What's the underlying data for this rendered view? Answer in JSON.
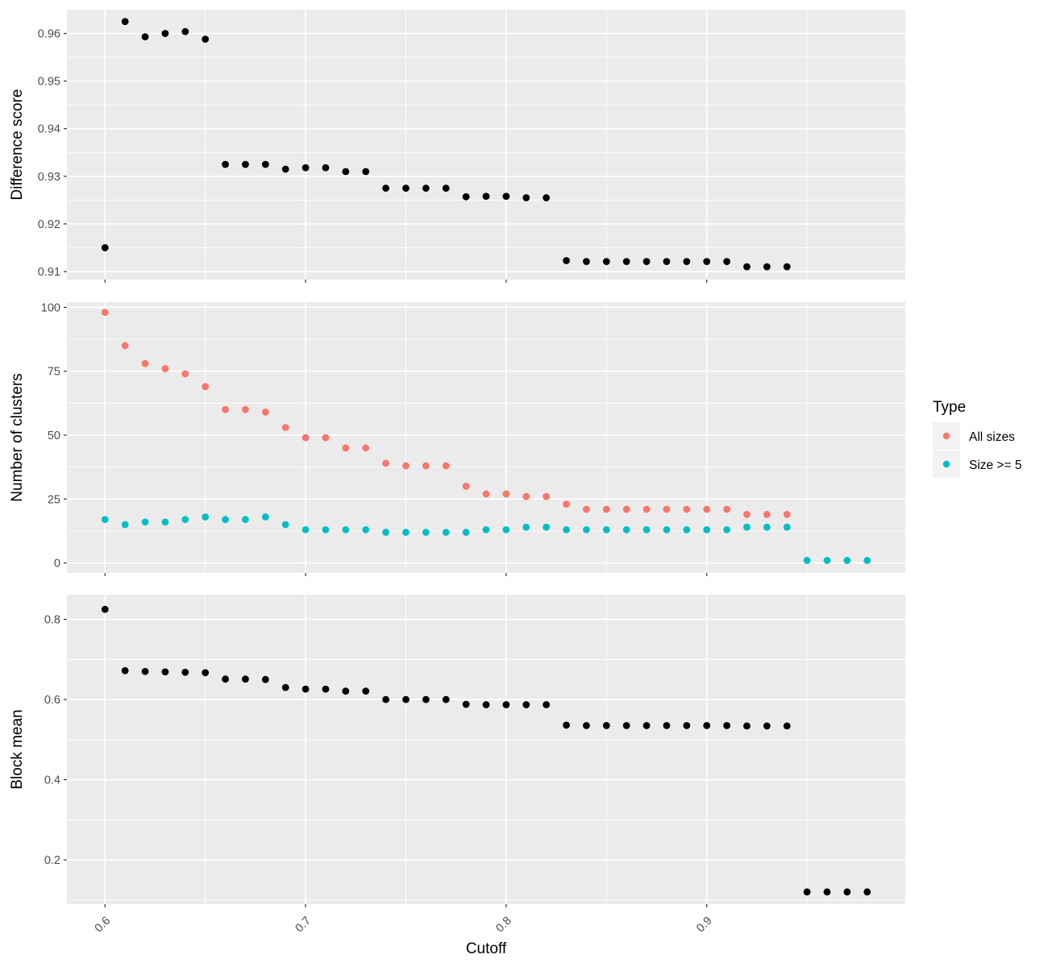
{
  "chart_data": {
    "type": "scatter",
    "x_axis": {
      "label": "Cutoff",
      "range": [
        0.581,
        0.999
      ],
      "ticks": [
        0.6,
        0.7,
        0.8,
        0.9
      ],
      "tick_labels": [
        "0.6",
        "0.7",
        "0.8",
        "0.9"
      ],
      "tick_label_rotation_deg": -45
    },
    "grid": true,
    "panel_background": "#ebebeb",
    "panels": [
      {
        "ylabel": "Difference score",
        "ylim": [
          0.9083,
          0.965
        ],
        "yticks": [
          0.91,
          0.92,
          0.93,
          0.94,
          0.95,
          0.96
        ],
        "ytick_labels": [
          "0.91",
          "0.92",
          "0.93",
          "0.94",
          "0.95",
          "0.96"
        ],
        "series": [
          {
            "color": "#000000",
            "points": [
              [
                0.6,
                0.915
              ],
              [
                0.61,
                0.9625
              ],
              [
                0.62,
                0.9593
              ],
              [
                0.63,
                0.96
              ],
              [
                0.64,
                0.9604
              ],
              [
                0.65,
                0.9588
              ],
              [
                0.66,
                0.9325
              ],
              [
                0.67,
                0.9325
              ],
              [
                0.68,
                0.9325
              ],
              [
                0.69,
                0.9315
              ],
              [
                0.7,
                0.9318
              ],
              [
                0.71,
                0.9318
              ],
              [
                0.72,
                0.931
              ],
              [
                0.73,
                0.931
              ],
              [
                0.74,
                0.9275
              ],
              [
                0.75,
                0.9275
              ],
              [
                0.76,
                0.9275
              ],
              [
                0.77,
                0.9275
              ],
              [
                0.78,
                0.9257
              ],
              [
                0.79,
                0.9258
              ],
              [
                0.8,
                0.9258
              ],
              [
                0.81,
                0.9255
              ],
              [
                0.82,
                0.9255
              ],
              [
                0.83,
                0.9123
              ],
              [
                0.84,
                0.9121
              ],
              [
                0.85,
                0.9121
              ],
              [
                0.86,
                0.9121
              ],
              [
                0.87,
                0.9121
              ],
              [
                0.88,
                0.9121
              ],
              [
                0.89,
                0.9121
              ],
              [
                0.9,
                0.9121
              ],
              [
                0.91,
                0.9121
              ],
              [
                0.92,
                0.911
              ],
              [
                0.93,
                0.911
              ],
              [
                0.94,
                0.911
              ]
            ]
          }
        ]
      },
      {
        "ylabel": "Number of clusters",
        "ylim": [
          -3.9,
          102.0
        ],
        "yticks": [
          0,
          25,
          50,
          75,
          100
        ],
        "ytick_labels": [
          "0",
          "25",
          "50",
          "75",
          "100"
        ],
        "series": [
          {
            "name": "All sizes",
            "color": "#F8766D",
            "points": [
              [
                0.6,
                98
              ],
              [
                0.61,
                85
              ],
              [
                0.62,
                78
              ],
              [
                0.63,
                76
              ],
              [
                0.64,
                74
              ],
              [
                0.65,
                69
              ],
              [
                0.66,
                60
              ],
              [
                0.67,
                60
              ],
              [
                0.68,
                59
              ],
              [
                0.69,
                53
              ],
              [
                0.7,
                49
              ],
              [
                0.71,
                49
              ],
              [
                0.72,
                45
              ],
              [
                0.73,
                45
              ],
              [
                0.74,
                39
              ],
              [
                0.75,
                38
              ],
              [
                0.76,
                38
              ],
              [
                0.77,
                38
              ],
              [
                0.78,
                30
              ],
              [
                0.79,
                27
              ],
              [
                0.8,
                27
              ],
              [
                0.81,
                26
              ],
              [
                0.82,
                26
              ],
              [
                0.83,
                23
              ],
              [
                0.84,
                21
              ],
              [
                0.85,
                21
              ],
              [
                0.86,
                21
              ],
              [
                0.87,
                21
              ],
              [
                0.88,
                21
              ],
              [
                0.89,
                21
              ],
              [
                0.9,
                21
              ],
              [
                0.91,
                21
              ],
              [
                0.92,
                19
              ],
              [
                0.93,
                19
              ],
              [
                0.94,
                19
              ]
            ]
          },
          {
            "name": "Size >= 5",
            "color": "#00BFC4",
            "points": [
              [
                0.6,
                17
              ],
              [
                0.61,
                15
              ],
              [
                0.62,
                16
              ],
              [
                0.63,
                16
              ],
              [
                0.64,
                17
              ],
              [
                0.65,
                18
              ],
              [
                0.66,
                17
              ],
              [
                0.67,
                17
              ],
              [
                0.68,
                18
              ],
              [
                0.69,
                15
              ],
              [
                0.7,
                13
              ],
              [
                0.71,
                13
              ],
              [
                0.72,
                13
              ],
              [
                0.73,
                13
              ],
              [
                0.74,
                12
              ],
              [
                0.75,
                12
              ],
              [
                0.76,
                12
              ],
              [
                0.77,
                12
              ],
              [
                0.78,
                12
              ],
              [
                0.79,
                13
              ],
              [
                0.8,
                13
              ],
              [
                0.81,
                14
              ],
              [
                0.82,
                14
              ],
              [
                0.83,
                13
              ],
              [
                0.84,
                13
              ],
              [
                0.85,
                13
              ],
              [
                0.86,
                13
              ],
              [
                0.87,
                13
              ],
              [
                0.88,
                13
              ],
              [
                0.89,
                13
              ],
              [
                0.9,
                13
              ],
              [
                0.91,
                13
              ],
              [
                0.92,
                14
              ],
              [
                0.93,
                14
              ],
              [
                0.94,
                14
              ],
              [
                0.95,
                1
              ],
              [
                0.96,
                1
              ],
              [
                0.97,
                1
              ],
              [
                0.98,
                1
              ]
            ]
          }
        ]
      },
      {
        "ylabel": "Block mean",
        "ylim": [
          0.0895,
          0.8615
        ],
        "yticks": [
          0.2,
          0.4,
          0.6,
          0.8
        ],
        "ytick_labels": [
          "0.2",
          "0.4",
          "0.6",
          "0.8"
        ],
        "series": [
          {
            "color": "#000000",
            "points": [
              [
                0.6,
                0.825
              ],
              [
                0.61,
                0.672
              ],
              [
                0.62,
                0.67
              ],
              [
                0.63,
                0.669
              ],
              [
                0.64,
                0.668
              ],
              [
                0.65,
                0.667
              ],
              [
                0.66,
                0.651
              ],
              [
                0.67,
                0.651
              ],
              [
                0.68,
                0.65
              ],
              [
                0.69,
                0.63
              ],
              [
                0.7,
                0.626
              ],
              [
                0.71,
                0.626
              ],
              [
                0.72,
                0.621
              ],
              [
                0.73,
                0.621
              ],
              [
                0.74,
                0.6
              ],
              [
                0.75,
                0.6
              ],
              [
                0.76,
                0.6
              ],
              [
                0.77,
                0.6
              ],
              [
                0.78,
                0.588
              ],
              [
                0.79,
                0.587
              ],
              [
                0.8,
                0.587
              ],
              [
                0.81,
                0.587
              ],
              [
                0.82,
                0.587
              ],
              [
                0.83,
                0.536
              ],
              [
                0.84,
                0.535
              ],
              [
                0.85,
                0.535
              ],
              [
                0.86,
                0.535
              ],
              [
                0.87,
                0.535
              ],
              [
                0.88,
                0.535
              ],
              [
                0.89,
                0.535
              ],
              [
                0.9,
                0.535
              ],
              [
                0.91,
                0.535
              ],
              [
                0.92,
                0.534
              ],
              [
                0.93,
                0.534
              ],
              [
                0.94,
                0.534
              ],
              [
                0.95,
                0.12
              ],
              [
                0.96,
                0.12
              ],
              [
                0.97,
                0.12
              ],
              [
                0.98,
                0.12
              ]
            ]
          }
        ]
      }
    ],
    "legend": {
      "title": "Type",
      "position": "right",
      "entries": [
        {
          "label": "All sizes",
          "color": "#F8766D"
        },
        {
          "label": "Size >= 5",
          "color": "#00BFC4"
        }
      ]
    }
  }
}
